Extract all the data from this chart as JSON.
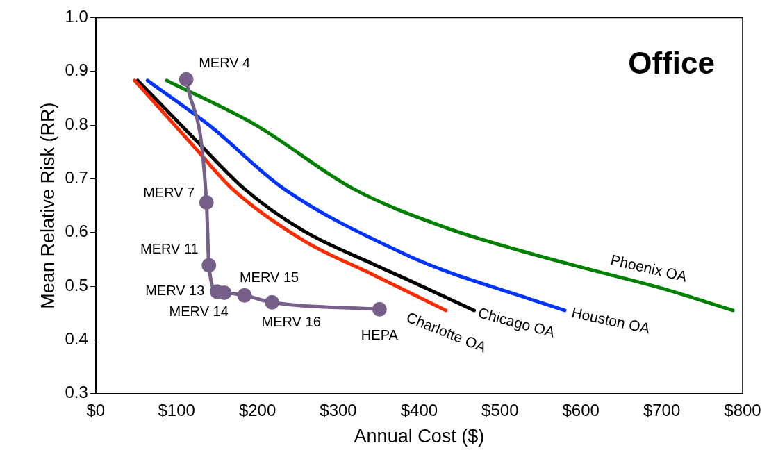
{
  "chart_data": {
    "type": "line",
    "title": "Office",
    "xlabel": "Annual Cost ($)",
    "ylabel": "Mean Relative Risk (RR)",
    "xlim": [
      0,
      800
    ],
    "xticks": [
      {
        "value": 0,
        "label": "$0"
      },
      {
        "value": 100,
        "label": "$100"
      },
      {
        "value": 200,
        "label": "$200"
      },
      {
        "value": 300,
        "label": "$300"
      },
      {
        "value": 400,
        "label": "$400"
      },
      {
        "value": 500,
        "label": "$500"
      },
      {
        "value": 600,
        "label": "$600"
      },
      {
        "value": 700,
        "label": "$700"
      },
      {
        "value": 800,
        "label": "$800"
      }
    ],
    "ylim": [
      0.3,
      1.0
    ],
    "yticks": [
      {
        "value": 0.3,
        "label": "0.3"
      },
      {
        "value": 0.4,
        "label": "0.4"
      },
      {
        "value": 0.5,
        "label": "0.5"
      },
      {
        "value": 0.6,
        "label": "0.6"
      },
      {
        "value": 0.7,
        "label": "0.7"
      },
      {
        "value": 0.8,
        "label": "0.8"
      },
      {
        "value": 0.9,
        "label": "0.9"
      },
      {
        "value": 1.0,
        "label": "1.0"
      }
    ],
    "grid": false,
    "legend": false,
    "marker": "none",
    "series": [
      {
        "name": "Charlotte OA",
        "color": "#ff2a00",
        "x": [
          48,
          122,
          169,
          257,
          345,
          433
        ],
        "values": [
          0.883,
          0.759,
          0.681,
          0.585,
          0.52,
          0.455
        ]
      },
      {
        "name": "Chicago OA",
        "color": "#000000",
        "x": [
          52,
          125,
          184,
          257,
          345,
          389,
          468
        ],
        "values": [
          0.883,
          0.77,
          0.681,
          0.603,
          0.54,
          0.51,
          0.455
        ]
      },
      {
        "name": "Houston OA",
        "color": "#0033ff",
        "x": [
          64,
          140,
          233,
          389,
          433,
          521,
          580
        ],
        "values": [
          0.883,
          0.8,
          0.681,
          0.555,
          0.528,
          0.484,
          0.455
        ]
      },
      {
        "name": "Phoenix OA",
        "color": "#008000",
        "x": [
          88,
          198,
          319,
          433,
          521,
          609,
          698,
          788
        ],
        "values": [
          0.883,
          0.8,
          0.681,
          0.609,
          0.568,
          0.532,
          0.497,
          0.455
        ]
      },
      {
        "color": "#76608a",
        "marker": "circle",
        "x": [
          112,
          137,
          140,
          150,
          159,
          184,
          218,
          351
        ],
        "values": [
          0.885,
          0.656,
          0.539,
          0.49,
          0.488,
          0.483,
          0.47,
          0.457
        ]
      }
    ],
    "annotations": [
      {
        "text": "MERV 4",
        "x": 112,
        "y": 0.885
      },
      {
        "text": "MERV 7",
        "x": 137,
        "y": 0.656
      },
      {
        "text": "MERV 11",
        "x": 140,
        "y": 0.539
      },
      {
        "text": "MERV 13",
        "x": 150,
        "y": 0.49
      },
      {
        "text": "MERV 14",
        "x": 159,
        "y": 0.488
      },
      {
        "text": "MERV 15",
        "x": 184,
        "y": 0.483
      },
      {
        "text": "MERV 16",
        "x": 218,
        "y": 0.47
      },
      {
        "text": "HEPA",
        "x": 351,
        "y": 0.457
      }
    ]
  }
}
